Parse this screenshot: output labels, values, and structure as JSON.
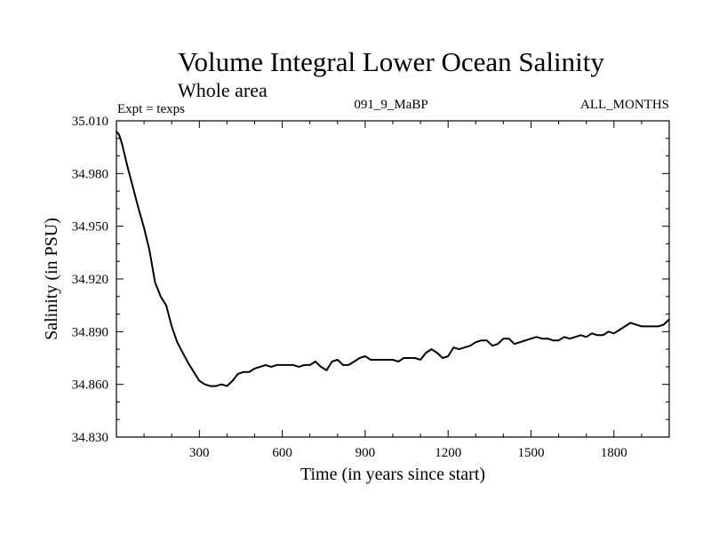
{
  "chart_data": {
    "type": "line",
    "title": "Volume Integral Lower Ocean Salinity",
    "subtitle": "Whole area",
    "experiment_label": "Expt = texps",
    "run_id": "091_9_MaBP",
    "months_label": "ALL_MONTHS",
    "xlabel": "Time (in years since start)",
    "ylabel": "Salinity (in PSU)",
    "xlim": [
      0,
      2000
    ],
    "ylim": [
      34.83,
      35.01
    ],
    "x_ticks": [
      300,
      600,
      900,
      1200,
      1500,
      1800
    ],
    "x_tick_labels": [
      "300",
      "600",
      "900",
      "1200",
      "1500",
      "1800"
    ],
    "y_ticks": [
      34.83,
      34.86,
      34.89,
      34.92,
      34.95,
      34.98,
      35.01
    ],
    "y_tick_labels": [
      "34.830",
      "34.860",
      "34.890",
      "34.920",
      "34.950",
      "34.980",
      "35.010"
    ],
    "grid": false,
    "colors": {
      "line": "#000000",
      "axes": "#000000",
      "background": "#ffffff"
    },
    "series": [
      {
        "name": "Volume integral lower ocean salinity",
        "x": [
          0,
          10,
          20,
          40,
          60,
          80,
          100,
          120,
          140,
          160,
          180,
          200,
          220,
          240,
          260,
          280,
          300,
          320,
          340,
          360,
          380,
          400,
          420,
          440,
          460,
          480,
          500,
          520,
          540,
          560,
          580,
          600,
          620,
          640,
          660,
          680,
          700,
          720,
          740,
          760,
          780,
          800,
          820,
          840,
          860,
          880,
          900,
          920,
          940,
          960,
          980,
          1000,
          1020,
          1040,
          1060,
          1080,
          1100,
          1120,
          1140,
          1160,
          1180,
          1200,
          1220,
          1240,
          1260,
          1280,
          1300,
          1320,
          1340,
          1360,
          1380,
          1400,
          1420,
          1440,
          1460,
          1480,
          1500,
          1520,
          1540,
          1560,
          1580,
          1600,
          1620,
          1640,
          1660,
          1680,
          1700,
          1720,
          1740,
          1760,
          1780,
          1800,
          1820,
          1840,
          1860,
          1880,
          1900,
          1920,
          1940,
          1960,
          1980,
          2000
        ],
        "y": [
          35.004,
          35.002,
          34.997,
          34.984,
          34.972,
          34.96,
          34.949,
          34.936,
          34.918,
          34.91,
          34.905,
          34.893,
          34.884,
          34.878,
          34.872,
          34.867,
          34.862,
          34.86,
          34.859,
          34.859,
          34.86,
          34.859,
          34.862,
          34.866,
          34.867,
          34.867,
          34.869,
          34.87,
          34.871,
          34.87,
          34.871,
          34.871,
          34.871,
          34.871,
          34.87,
          34.871,
          34.871,
          34.873,
          34.87,
          34.868,
          34.873,
          34.874,
          34.871,
          34.871,
          34.873,
          34.875,
          34.876,
          34.874,
          34.874,
          34.874,
          34.874,
          34.874,
          34.873,
          34.875,
          34.875,
          34.875,
          34.874,
          34.878,
          34.88,
          34.878,
          34.875,
          34.876,
          34.881,
          34.88,
          34.881,
          34.882,
          34.884,
          34.885,
          34.885,
          34.882,
          34.883,
          34.886,
          34.886,
          34.883,
          34.884,
          34.885,
          34.886,
          34.887,
          34.886,
          34.886,
          34.885,
          34.885,
          34.887,
          34.886,
          34.887,
          34.888,
          34.887,
          34.889,
          34.888,
          34.888,
          34.89,
          34.889,
          34.891,
          34.893,
          34.895,
          34.894,
          34.893,
          34.893,
          34.893,
          34.893,
          34.894,
          34.897
        ]
      }
    ]
  }
}
